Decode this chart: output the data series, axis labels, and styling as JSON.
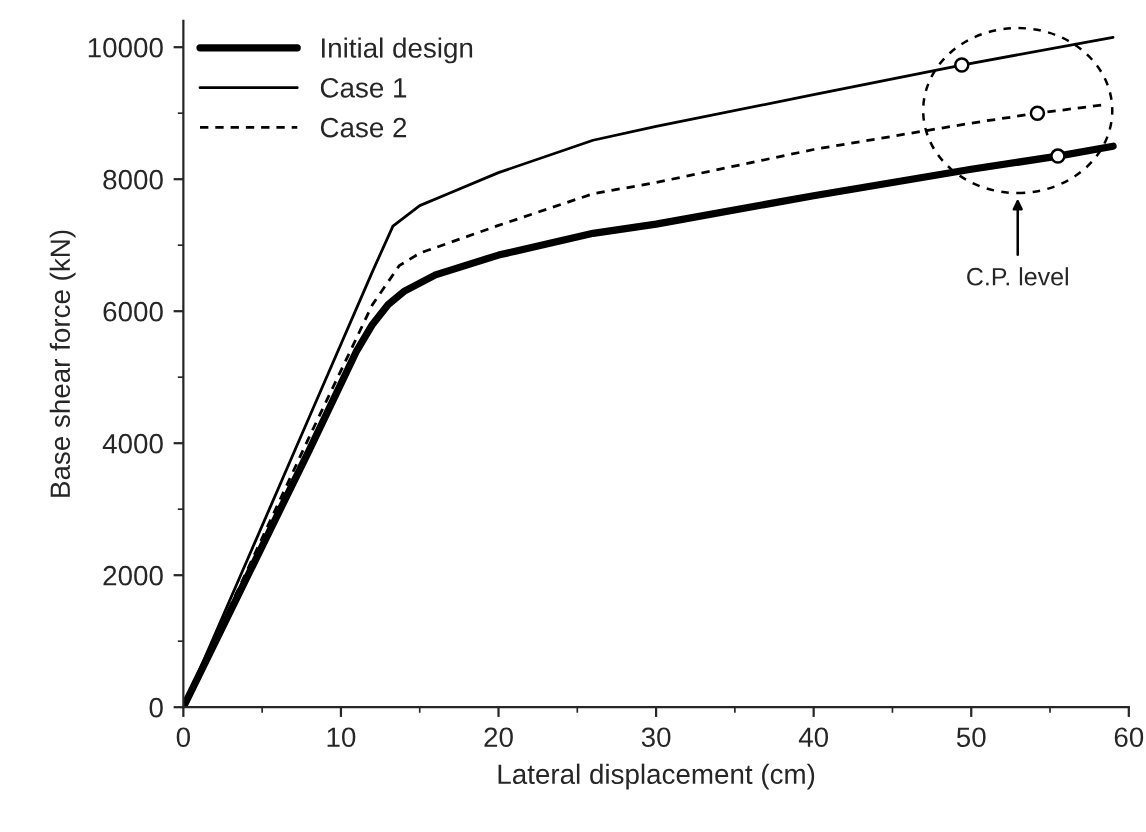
{
  "chart_data": {
    "type": "line",
    "xlabel": "Lateral displacement (cm)",
    "ylabel": "Base shear force (kN)",
    "xlim": [
      0,
      60
    ],
    "ylim": [
      0,
      10400
    ],
    "xticks": [
      0,
      10,
      20,
      30,
      40,
      50,
      60
    ],
    "yticks": [
      0,
      2000,
      4000,
      6000,
      8000,
      10000
    ],
    "grid": false,
    "legend": "top left",
    "marker": "none",
    "series": [
      {
        "name": "Initial design",
        "color": "#000000",
        "line_style": "solid",
        "x": [
          0,
          4,
          8,
          11,
          12,
          13,
          14,
          16,
          20,
          26,
          30,
          40,
          50,
          55.5,
          59
        ],
        "values": [
          0,
          1950,
          3900,
          5400,
          5800,
          6100,
          6300,
          6550,
          6850,
          7180,
          7320,
          7750,
          8150,
          8350,
          8500
        ]
      },
      {
        "name": "Case 1",
        "color": "#000000",
        "line_style": "solid",
        "x": [
          0,
          4,
          8,
          12,
          13.3,
          15,
          16.8,
          20,
          26,
          30,
          40,
          49.4,
          59
        ],
        "values": [
          0,
          2200,
          4400,
          6600,
          7290,
          7600,
          7780,
          8100,
          8590,
          8800,
          9280,
          9730,
          10150
        ]
      },
      {
        "name": "Case 2",
        "color": "#000000",
        "line_style": "dashed",
        "x": [
          0,
          4,
          8,
          12,
          13.7,
          15,
          16.8,
          20,
          26,
          30,
          40,
          50,
          54.2,
          58.5
        ],
        "values": [
          0,
          2050,
          4100,
          6100,
          6690,
          6880,
          7030,
          7300,
          7780,
          7950,
          8450,
          8850,
          9000,
          9130
        ]
      },
      {
        "type": "scatter",
        "marker": "circle",
        "color": "#000000",
        "x": [
          49.4,
          54.2,
          55.5
        ],
        "values": [
          9730,
          9000,
          8350
        ]
      }
    ],
    "annotations": [
      "C.P. level"
    ]
  }
}
